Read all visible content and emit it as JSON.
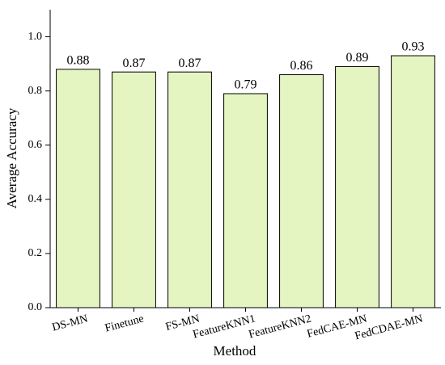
{
  "chart_data": {
    "type": "bar",
    "xlabel": "Method",
    "ylabel": "Average Accuracy",
    "categories": [
      "DS-MN",
      "Finetune",
      "FS-MN",
      "FeatureKNN1",
      "FeatureKNN2",
      "FedCAE-MN",
      "FedCDAE-MN"
    ],
    "values": [
      0.88,
      0.87,
      0.87,
      0.79,
      0.86,
      0.89,
      0.93
    ],
    "color": "#e4f5c1",
    "ylim": [
      0,
      1.1
    ],
    "yticks": [
      {
        "value": 0,
        "label": "0.0"
      },
      0.2,
      0.4,
      0.6,
      0.8,
      {
        "value": 1,
        "label": "1.0"
      }
    ],
    "grid": false
  }
}
